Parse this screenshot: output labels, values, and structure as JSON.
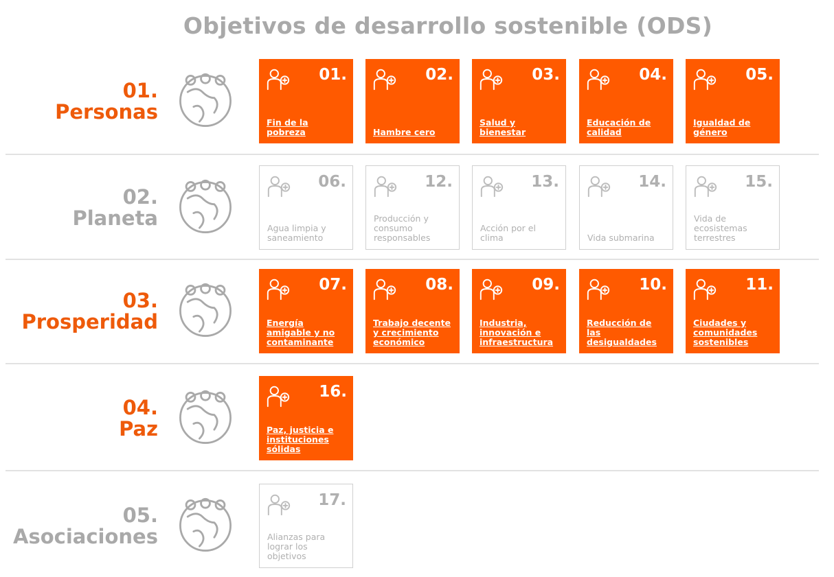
{
  "title": "Objetivos de desarrollo sostenible (ODS)",
  "rows": [
    {
      "number": "01.",
      "name": "Personas",
      "highlighted": true,
      "cards": [
        {
          "number": "01.",
          "label": "Fin de la pobreza"
        },
        {
          "number": "02.",
          "label": "Hambre cero"
        },
        {
          "number": "03.",
          "label": "Salud y bienestar"
        },
        {
          "number": "04.",
          "label": "Educación de calidad"
        },
        {
          "number": "05.",
          "label": "Igualdad de género"
        }
      ]
    },
    {
      "number": "02.",
      "name": "Planeta",
      "highlighted": false,
      "cards": [
        {
          "number": "06.",
          "label": "Agua limpia y saneamiento"
        },
        {
          "number": "12.",
          "label": "Producción y consumo responsables"
        },
        {
          "number": "13.",
          "label": "Acción por el clima"
        },
        {
          "number": "14.",
          "label": "Vida submarina"
        },
        {
          "number": "15.",
          "label": "Vida de ecosistemas terrestres"
        }
      ]
    },
    {
      "number": "03.",
      "name": "Prosperidad",
      "highlighted": true,
      "cards": [
        {
          "number": "07.",
          "label": "Energía amigable y no contaminante"
        },
        {
          "number": "08.",
          "label": "Trabajo decente y crecimiento económico"
        },
        {
          "number": "09.",
          "label": "Industria, innovación e infraestructura"
        },
        {
          "number": "10.",
          "label": "Reducción de las desigualdades"
        },
        {
          "number": "11.",
          "label": "Ciudades y comunidades sostenibles"
        }
      ]
    },
    {
      "number": "04.",
      "name": "Paz",
      "highlighted": true,
      "cards": [
        {
          "number": "16.",
          "label": "Paz, justicia e instituciones sólidas"
        }
      ]
    },
    {
      "number": "05.",
      "name": "Asociaciones",
      "highlighted": false,
      "cards": [
        {
          "number": "17.",
          "label": "Alianzas para lograr los objetivos"
        }
      ]
    }
  ]
}
